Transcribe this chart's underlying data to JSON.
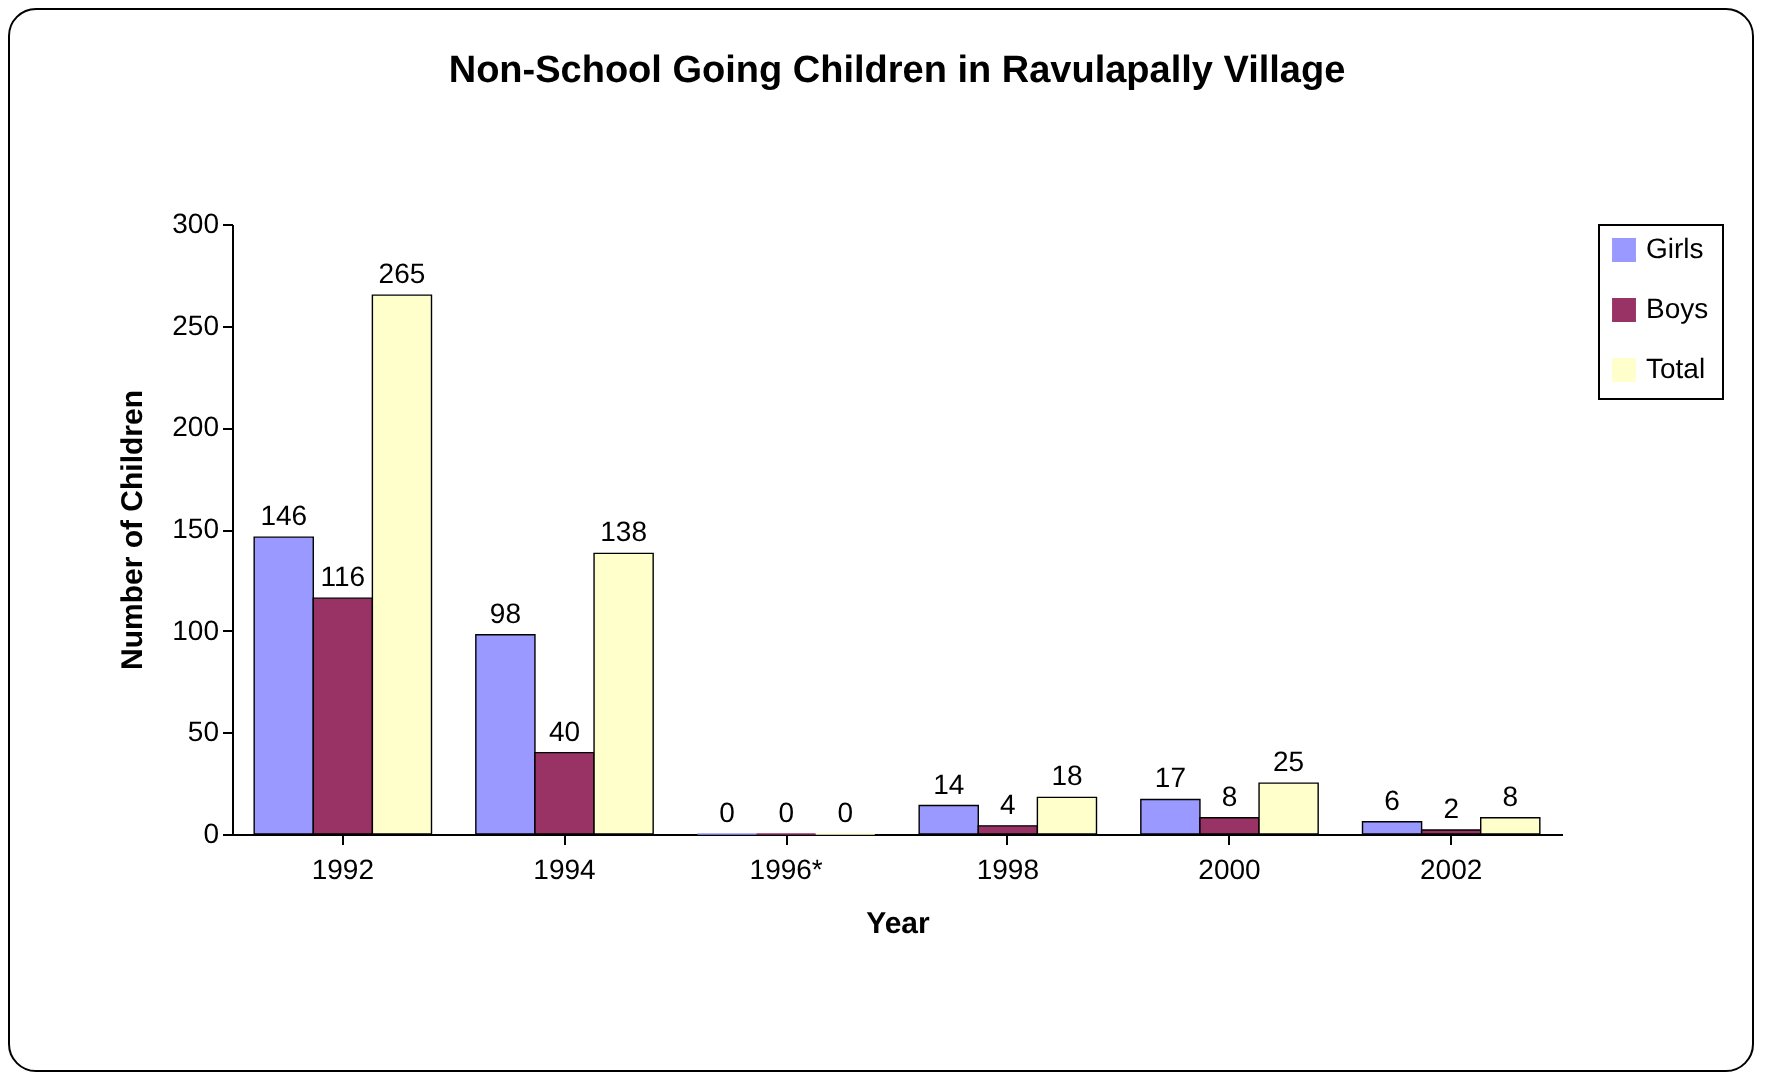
{
  "chart_data": {
    "type": "bar",
    "title": "Non-School Going Children in Ravulapally Village",
    "xlabel": "Year",
    "ylabel": "Number of Children",
    "categories": [
      "1992",
      "1994",
      "1996*",
      "1998",
      "2000",
      "2002"
    ],
    "series": [
      {
        "name": "Girls",
        "color": "#9999ff",
        "values": [
          146,
          98,
          0,
          14,
          17,
          6
        ]
      },
      {
        "name": "Boys",
        "color": "#993366",
        "values": [
          116,
          40,
          0,
          4,
          8,
          2
        ]
      },
      {
        "name": "Total",
        "color": "#ffffcc",
        "values": [
          265,
          138,
          0,
          18,
          25,
          8
        ]
      }
    ],
    "ylim": [
      0,
      300
    ],
    "yticks": [
      0,
      50,
      100,
      150,
      200,
      250,
      300
    ],
    "grid": false,
    "legend": "right",
    "data_labels": true
  }
}
